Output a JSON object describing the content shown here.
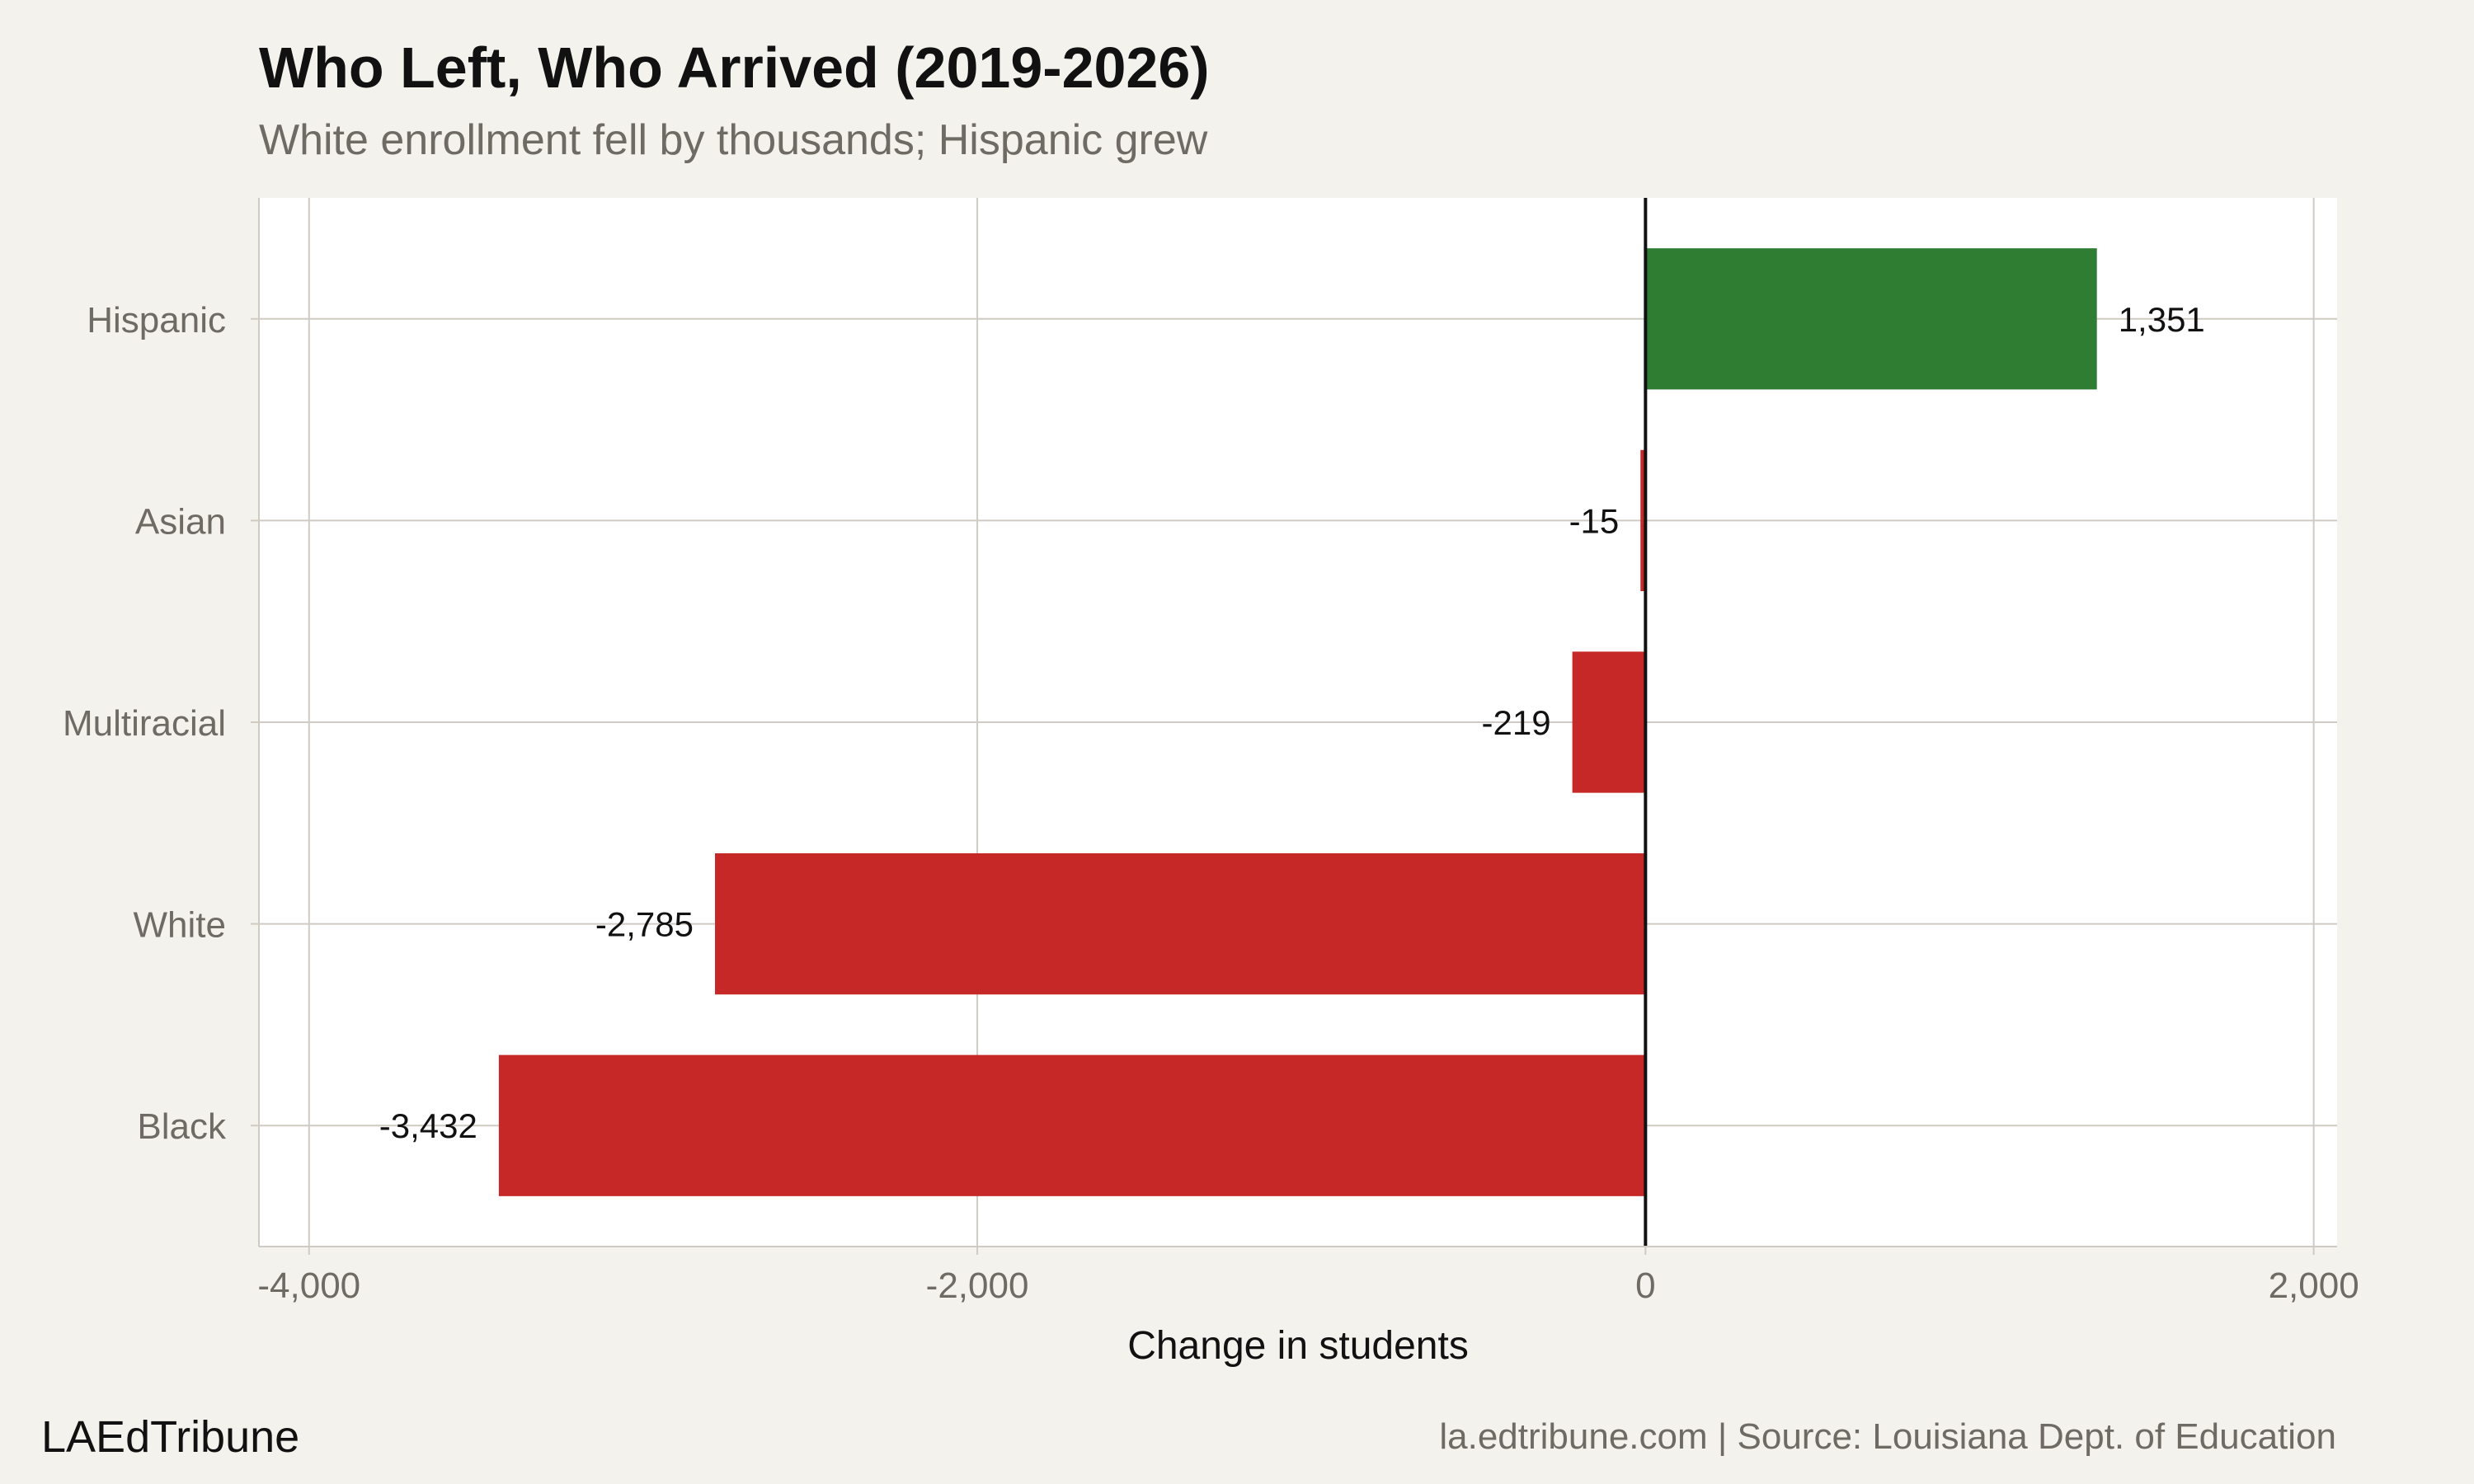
{
  "header": {
    "title": "Who Left, Who Arrived (2019-2026)",
    "subtitle": "White enrollment fell by thousands; Hispanic grew"
  },
  "footer": {
    "brand": "LAEdTribune",
    "source": "la.edtribune.com | Source: Louisiana Dept. of Education"
  },
  "colors": {
    "positive": "#2e7d32",
    "negative": "#c62828",
    "panel": "#ffffff",
    "background": "#f4f2ed",
    "grid": "#cfcbc4",
    "zero_line": "#111111"
  },
  "chart_data": {
    "type": "bar",
    "orientation": "horizontal",
    "title": "Who Left, Who Arrived (2019-2026)",
    "subtitle": "White enrollment fell by thousands; Hispanic grew",
    "categories": [
      "Hispanic",
      "Asian",
      "Multiracial",
      "White",
      "Black"
    ],
    "values": [
      1351,
      -15,
      -219,
      -2785,
      -3432
    ],
    "value_labels": [
      "1,351",
      "-15",
      "-219",
      "-2,785",
      "-3,432"
    ],
    "xlabel": "Change in students",
    "ylabel": "",
    "xlim": [
      -4150,
      2070
    ],
    "xticks": [
      -4000,
      -2000,
      0,
      2000
    ],
    "xtick_labels": [
      "-4,000",
      "-2,000",
      "0",
      "2,000"
    ],
    "grid": true,
    "legend": "none"
  }
}
